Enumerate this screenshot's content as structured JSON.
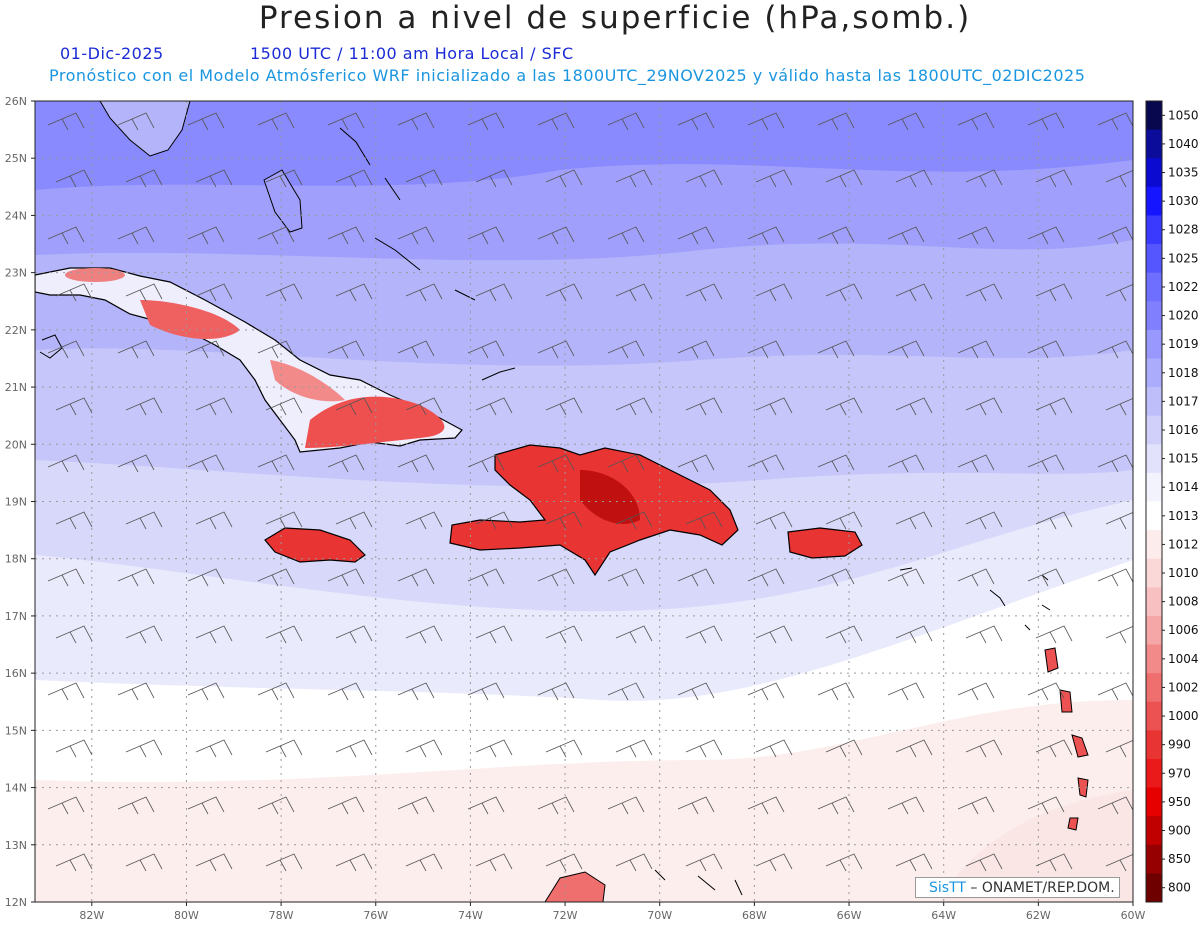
{
  "header": {
    "title": "Presion a nivel de superficie (hPa,somb.)",
    "date": "01-Dic-2025",
    "time_info": "1500 UTC / 11:00 am Hora Local / SFC",
    "model_info": "Pronóstico con el Modelo Atmósferico WRF inicializado a las 1800UTC_29NOV2025 y válido hasta las  1800UTC_02DIC2025"
  },
  "map": {
    "lat_labels": [
      "26N",
      "25N",
      "24N",
      "23N",
      "22N",
      "21N",
      "20N",
      "19N",
      "18N",
      "17N",
      "16N",
      "15N",
      "14N",
      "13N",
      "12N"
    ],
    "lon_labels": [
      "82W",
      "80W",
      "78W",
      "76W",
      "74W",
      "72W",
      "70W",
      "68W",
      "66W",
      "64W",
      "62W",
      "60W"
    ],
    "lat_range": [
      12,
      26
    ],
    "lon_range": [
      -83.2,
      -60
    ],
    "grid": "dotted"
  },
  "colorbar": {
    "labels": [
      "1050",
      "1040",
      "1035",
      "1030",
      "1028",
      "1025",
      "1022",
      "1020",
      "1019",
      "1018",
      "1017",
      "1016",
      "1015",
      "1014",
      "1013",
      "1012",
      "1010",
      "1008",
      "1006",
      "1004",
      "1002",
      "1000",
      "990",
      "970",
      "950",
      "900",
      "850",
      "800"
    ],
    "colors": [
      "#08084f",
      "#0c0c9a",
      "#0a0ad0",
      "#1515ff",
      "#3a3aff",
      "#5656ff",
      "#6f6fff",
      "#8080ff",
      "#9898ff",
      "#acacfc",
      "#bebefa",
      "#d0d0fa",
      "#e2e2fc",
      "#f3f3fe",
      "#ffffff",
      "#fdecec",
      "#fbd8d8",
      "#f8c0c0",
      "#f5a6a6",
      "#f28a8a",
      "#ef6e6e",
      "#ec5252",
      "#e93434",
      "#ea1a1a",
      "#e60000",
      "#c00000",
      "#960000",
      "#6e0000"
    ]
  },
  "credit": {
    "sis": "SisTT",
    "text": " – ONAMET/REP.DOM."
  }
}
